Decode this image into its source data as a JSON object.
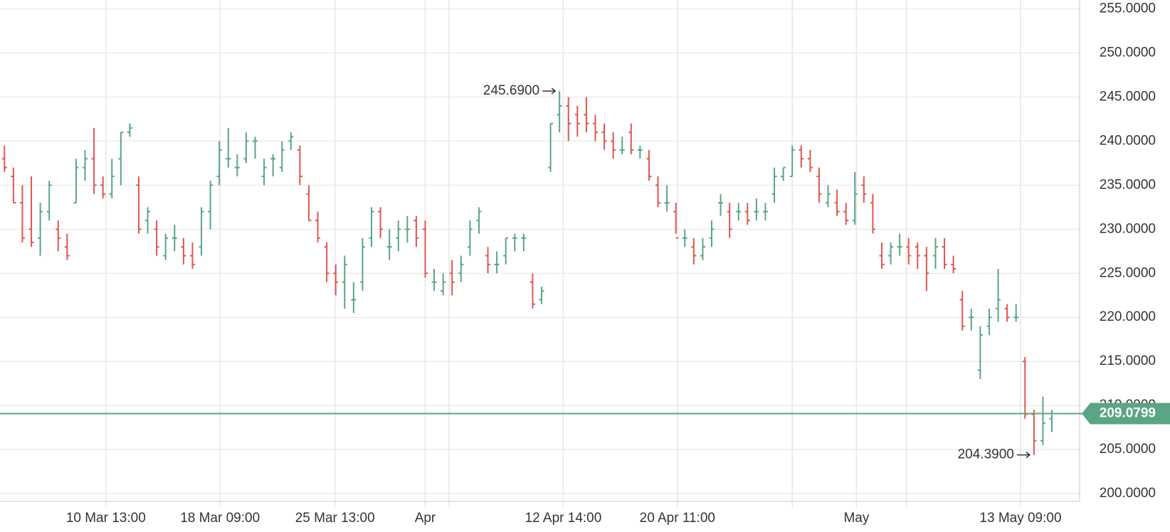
{
  "chart_data": {
    "type": "ohlc",
    "up_color": "#5aa585",
    "down_color": "#e0564f",
    "grid": true,
    "xlim": [
      0,
      120.6
    ],
    "xticks": [
      {
        "value": 11.83,
        "label": "10 Mar 13:00"
      },
      {
        "value": 24.58,
        "label": "18 Mar 09:00"
      },
      {
        "value": 37.42,
        "label": "25 Mar 13:00"
      },
      {
        "value": 47.5,
        "label": "Apr"
      },
      {
        "value": 62.92,
        "label": "12 Apr 14:00"
      },
      {
        "value": 75.67,
        "label": "20 Apr 11:00"
      },
      {
        "value": 95.67,
        "label": "May"
      },
      {
        "value": 114,
        "label": "13 May 09:00"
      }
    ],
    "x_minor_grid": [
      50.17,
      88.5,
      101.25
    ],
    "ylim": [
      200,
      255
    ],
    "yticks": [
      {
        "value": 200,
        "label": "200.0000"
      },
      {
        "value": 205,
        "label": "205.0000"
      },
      {
        "value": 210,
        "label": "210.0000"
      },
      {
        "value": 215,
        "label": "215.0000"
      },
      {
        "value": 220,
        "label": "220.0000"
      },
      {
        "value": 225,
        "label": "225.0000"
      },
      {
        "value": 230,
        "label": "230.0000"
      },
      {
        "value": 235,
        "label": "235.0000"
      },
      {
        "value": 240,
        "label": "240.0000"
      },
      {
        "value": 245,
        "label": "245.0000"
      },
      {
        "value": 250,
        "label": "250.0000"
      },
      {
        "value": 255,
        "label": "255.0000"
      }
    ],
    "open": [
      238,
      236,
      233,
      230,
      229,
      232,
      230,
      228,
      233,
      237,
      238,
      235,
      234,
      238,
      241,
      235,
      231,
      230,
      227,
      229,
      228,
      227,
      228,
      232,
      236,
      238,
      237,
      238,
      240,
      236,
      238,
      237,
      240,
      239,
      234,
      231,
      228,
      225,
      224,
      222,
      224,
      229,
      232,
      228,
      229,
      230,
      231,
      230,
      224,
      223,
      225,
      225,
      228,
      231,
      227,
      226,
      227,
      229,
      229,
      224,
      222,
      237,
      243,
      244,
      243,
      243,
      242,
      241,
      240,
      239,
      241,
      239,
      238,
      235,
      233,
      232,
      229,
      228,
      227,
      229,
      233,
      232,
      232,
      232,
      232,
      232,
      234,
      236,
      236,
      239,
      238,
      236,
      233,
      233,
      232,
      231,
      235,
      233,
      227,
      227,
      228,
      228,
      228,
      227,
      227,
      228,
      226,
      222,
      220,
      214,
      219,
      221,
      221,
      220,
      215,
      209,
      206,
      208.5
    ],
    "high": [
      239.5,
      237,
      235,
      236,
      233,
      235.5,
      231,
      229.5,
      238,
      239,
      241.5,
      236,
      238,
      241,
      242,
      236,
      232.5,
      231,
      229.5,
      230.5,
      229,
      228.5,
      232.5,
      235.5,
      240,
      241.5,
      238.5,
      241,
      240.5,
      238,
      238.5,
      240,
      241,
      239.5,
      235,
      232,
      228.5,
      226,
      227,
      224,
      229,
      232.5,
      232.5,
      230,
      231,
      231.5,
      231.5,
      231,
      225.5,
      225,
      226.5,
      227,
      231,
      232.5,
      228,
      227.5,
      229,
      229.5,
      229.5,
      225,
      223.5,
      242,
      245.69,
      245,
      244,
      245,
      243,
      242,
      241,
      240.5,
      242,
      239.5,
      239,
      236,
      235,
      233,
      230,
      229,
      229,
      231,
      234,
      233,
      233,
      233,
      233.5,
      233,
      237,
      237,
      239.5,
      239.5,
      239,
      237,
      235,
      234.5,
      233,
      236.5,
      236,
      234,
      228.5,
      228.5,
      229.5,
      229,
      228.5,
      228,
      229,
      229,
      227,
      223,
      221,
      219,
      221,
      225.5,
      221.5,
      221.5,
      215.5,
      209.5,
      211,
      209.5
    ],
    "low": [
      236.5,
      233,
      228.5,
      228,
      227,
      231,
      227.5,
      226.5,
      233,
      235.5,
      234,
      233.5,
      233.5,
      235,
      240.5,
      229.5,
      229.5,
      227,
      226.5,
      227.5,
      226,
      225.5,
      227,
      230,
      235,
      237,
      236,
      237.5,
      238,
      235,
      236,
      236.5,
      239,
      235,
      231,
      228.5,
      224,
      222.5,
      221,
      220.5,
      223,
      228,
      229,
      226.5,
      227.5,
      228.5,
      228,
      224.5,
      223,
      222.5,
      222.5,
      224,
      227,
      229.5,
      225,
      225,
      226,
      227.5,
      227.5,
      221,
      221.5,
      236.5,
      241,
      240,
      240.5,
      241,
      240,
      239,
      238,
      238.5,
      238.5,
      238,
      235.5,
      232.5,
      232,
      229.5,
      228,
      226,
      226.5,
      228,
      231.5,
      229,
      231,
      230.5,
      231,
      231,
      233,
      235.5,
      236,
      237,
      236.5,
      233,
      232.5,
      231.5,
      230.5,
      230.5,
      233,
      229.5,
      225.5,
      226,
      227,
      226,
      225.5,
      223,
      225.5,
      225.5,
      225,
      218.5,
      218.5,
      213,
      218,
      219.5,
      219.5,
      219.5,
      208.5,
      204.39,
      205.5,
      207
    ],
    "close": [
      237,
      233,
      229,
      228.5,
      232,
      235,
      229,
      227,
      237,
      238,
      235,
      234,
      236,
      241,
      241.5,
      230,
      232,
      228,
      229,
      229,
      227,
      226,
      232,
      235,
      239,
      238,
      237,
      240,
      240,
      237,
      238,
      239,
      240.5,
      236,
      231,
      229,
      225,
      224,
      226,
      222,
      228,
      232,
      230,
      228,
      230,
      230,
      229,
      225,
      224,
      224,
      224,
      226,
      230,
      232,
      226,
      226,
      229,
      229,
      229,
      221.5,
      223,
      242,
      244,
      242,
      242,
      242,
      241,
      240,
      239,
      239,
      239,
      239,
      236,
      233,
      233,
      229,
      229,
      227,
      228,
      230,
      233,
      230,
      232,
      231,
      232,
      232,
      236,
      237,
      239,
      238,
      237,
      234,
      234,
      232,
      231,
      234,
      234,
      230,
      226,
      228,
      228,
      227,
      227,
      225,
      228,
      226,
      225.5,
      219,
      220,
      218,
      220,
      222,
      220,
      220,
      209,
      206,
      208,
      209.0799
    ],
    "annotations": [
      {
        "index": 62,
        "value": 245.69,
        "label": "245.6900"
      },
      {
        "index": 115,
        "value": 204.39,
        "label": "204.3900"
      }
    ],
    "last_price": {
      "value": 209.0799,
      "label": "209.0799",
      "color": "#5aa585"
    }
  }
}
